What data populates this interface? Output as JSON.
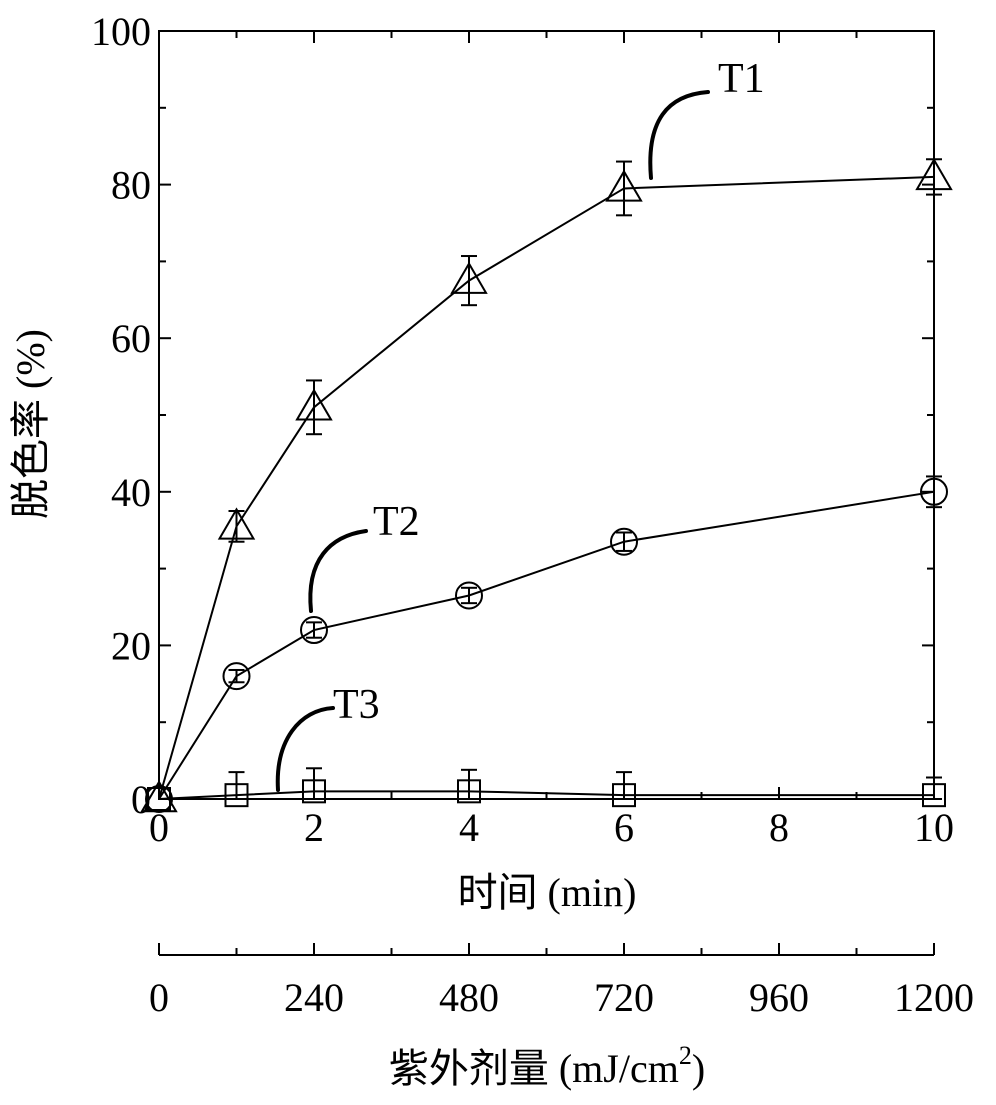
{
  "chart_data": {
    "type": "line",
    "ylabel": "脱色率 (%)",
    "xlabel": "时间 (min)",
    "x2label": "紫外剂量 (mJ/cm",
    "x2label_sup": "2",
    "x2label_close": ")",
    "xlim": [
      0,
      10
    ],
    "ylim": [
      0,
      100
    ],
    "x2lim": [
      0,
      1200
    ],
    "x_ticks": [
      0,
      2,
      4,
      6,
      8,
      10
    ],
    "x_tick_labels": [
      "0",
      "2",
      "4",
      "6",
      "8",
      "10"
    ],
    "y_ticks": [
      0,
      20,
      40,
      60,
      80,
      100
    ],
    "y_tick_labels": [
      "0",
      "20",
      "40",
      "60",
      "80",
      "100"
    ],
    "x2_ticks": [
      0,
      240,
      480,
      720,
      960,
      1200
    ],
    "x2_tick_labels": [
      "0",
      "240",
      "480",
      "720",
      "960",
      "1200"
    ],
    "grid": false,
    "legend": "none",
    "x": [
      0,
      1,
      2,
      4,
      6,
      10
    ],
    "series": [
      {
        "name": "T1",
        "marker": "triangle",
        "values": [
          0,
          35.5,
          51,
          67.5,
          79.5,
          81
        ],
        "errors": [
          0,
          2.0,
          3.5,
          3.2,
          3.5,
          2.3
        ]
      },
      {
        "name": "T2",
        "marker": "circle",
        "values": [
          0,
          16,
          22,
          26.5,
          33.5,
          40
        ],
        "errors": [
          0,
          0.8,
          1.0,
          1.0,
          1.2,
          2.0
        ]
      },
      {
        "name": "T3",
        "marker": "square",
        "values": [
          0,
          0.5,
          1,
          1,
          0.5,
          0.5
        ],
        "errors": [
          0,
          3.0,
          3.0,
          2.8,
          3.0,
          2.3
        ]
      }
    ]
  }
}
